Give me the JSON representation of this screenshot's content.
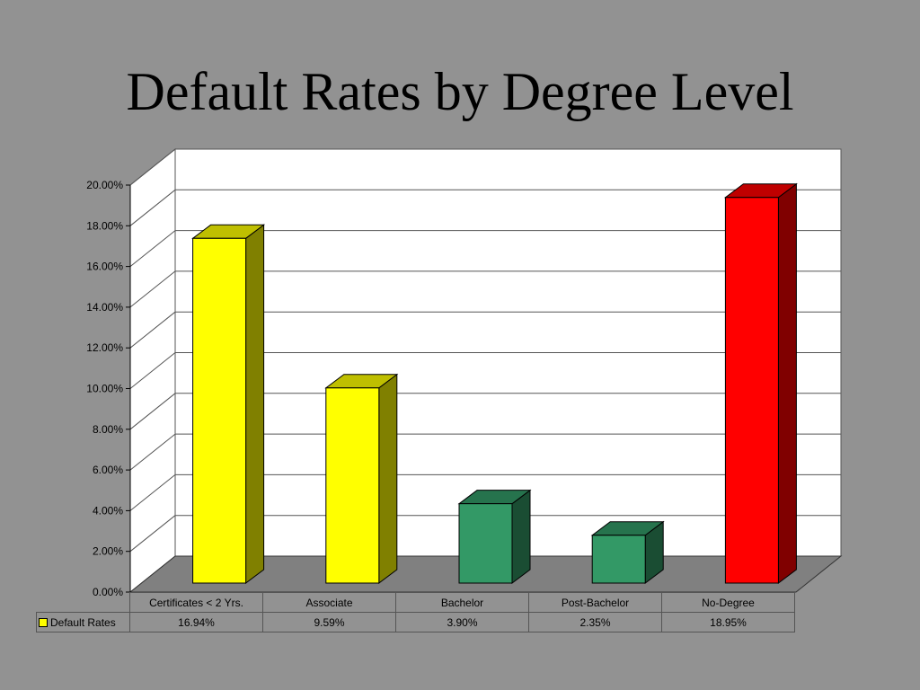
{
  "chart_data": {
    "type": "bar",
    "title": "Default Rates by Degree Level",
    "categories": [
      "Certificates < 2 Yrs.",
      "Associate",
      "Bachelor",
      "Post-Bachelor",
      "No-Degree"
    ],
    "series": [
      {
        "name": "Default Rates",
        "values": [
          16.94,
          9.59,
          3.9,
          2.35,
          18.95
        ]
      }
    ],
    "value_labels": [
      "16.94%",
      "9.59%",
      "3.90%",
      "2.35%",
      "18.95%"
    ],
    "ylim": [
      0,
      20
    ],
    "yticks": [
      0,
      2,
      4,
      6,
      8,
      10,
      12,
      14,
      16,
      18,
      20
    ],
    "ytick_labels": [
      "0.00%",
      "2.00%",
      "4.00%",
      "6.00%",
      "8.00%",
      "10.00%",
      "12.00%",
      "14.00%",
      "16.00%",
      "18.00%",
      "20.00%"
    ],
    "bar_colors": [
      "#FFFF00",
      "#FFFF00",
      "#339966",
      "#339966",
      "#FF0000"
    ],
    "grid": true,
    "legend_position": "data-table",
    "background": "#929292",
    "legend_swatch_color": "#FFFF00"
  }
}
